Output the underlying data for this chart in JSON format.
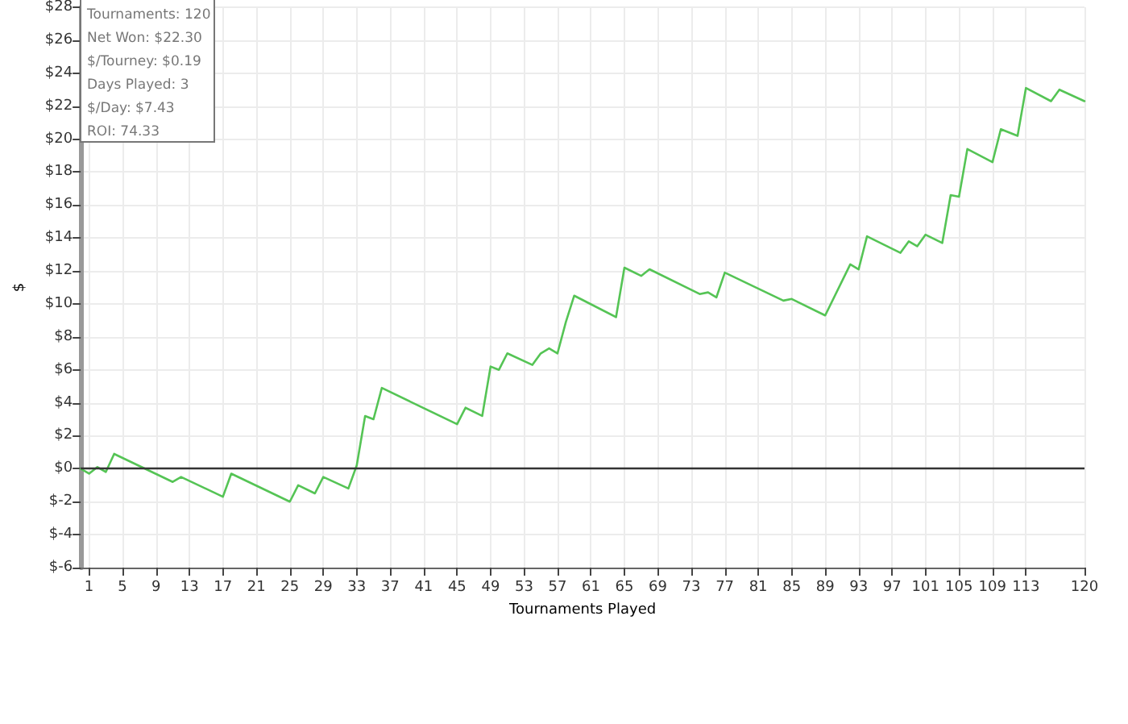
{
  "chart_data": {
    "type": "line",
    "xlabel": "Tournaments Played",
    "ylabel": "$",
    "annotations": [
      "Tournaments: 120",
      "Net Won: $22.30",
      "$/Tourney: $0.19",
      "Days Played: 3",
      "$/Day: $7.43",
      "ROI: 74.33"
    ],
    "series": [
      {
        "color": "#55c455",
        "x": [
          0,
          1,
          2,
          3,
          4,
          11,
          12,
          17,
          18,
          25,
          26,
          28,
          29,
          32,
          33,
          34,
          35,
          36,
          45,
          46,
          48,
          49,
          50,
          51,
          54,
          55,
          56,
          57,
          58,
          59,
          64,
          65,
          67,
          68,
          74,
          75,
          76,
          77,
          84,
          85,
          89,
          92,
          93,
          94,
          98,
          99,
          100,
          101,
          103,
          104,
          105,
          106,
          109,
          110,
          112,
          113,
          116,
          117,
          120
        ],
        "values": [
          0,
          -0.3,
          0.1,
          -0.2,
          0.9,
          -0.8,
          -0.5,
          -1.7,
          -0.3,
          -2.0,
          -1.0,
          -1.5,
          -0.5,
          -1.2,
          0.2,
          3.2,
          3.0,
          4.9,
          2.7,
          3.7,
          3.2,
          6.2,
          6.0,
          7.0,
          6.3,
          7.0,
          7.3,
          7.0,
          8.9,
          10.5,
          9.2,
          12.2,
          11.7,
          12.1,
          10.6,
          10.7,
          10.4,
          11.9,
          10.2,
          10.3,
          9.3,
          12.4,
          12.1,
          14.1,
          13.1,
          13.8,
          13.5,
          14.2,
          13.7,
          16.6,
          16.5,
          19.4,
          18.6,
          20.6,
          20.2,
          23.1,
          22.3,
          23.0,
          22.3
        ]
      }
    ],
    "xlim": [
      0,
      120
    ],
    "xticks": [
      1,
      5,
      9,
      13,
      17,
      21,
      25,
      29,
      33,
      37,
      41,
      45,
      49,
      53,
      57,
      61,
      65,
      69,
      73,
      77,
      81,
      85,
      89,
      93,
      97,
      101,
      105,
      109,
      113,
      120
    ],
    "ylim": [
      -6,
      28
    ],
    "yticks": [
      {
        "value": -6,
        "label": "$-6"
      },
      {
        "value": -4,
        "label": "$-4"
      },
      {
        "value": -2,
        "label": "$-2"
      },
      {
        "value": 0,
        "label": "$0"
      },
      {
        "value": 2,
        "label": "$2"
      },
      {
        "value": 4,
        "label": "$4"
      },
      {
        "value": 6,
        "label": "$6"
      },
      {
        "value": 8,
        "label": "$8"
      },
      {
        "value": 10,
        "label": "$10"
      },
      {
        "value": 12,
        "label": "$12"
      },
      {
        "value": 14,
        "label": "$14"
      },
      {
        "value": 16,
        "label": "$16"
      },
      {
        "value": 18,
        "label": "$18"
      },
      {
        "value": 20,
        "label": "$20"
      },
      {
        "value": 22,
        "label": "$22"
      },
      {
        "value": 24,
        "label": "$24"
      },
      {
        "value": 26,
        "label": "$26"
      },
      {
        "value": 28,
        "label": "$28"
      }
    ],
    "ref_lines": [
      {
        "axis": "y",
        "value": 0,
        "color": "#333333"
      }
    ],
    "grid": true,
    "marker": "none",
    "line_style": "solid"
  }
}
